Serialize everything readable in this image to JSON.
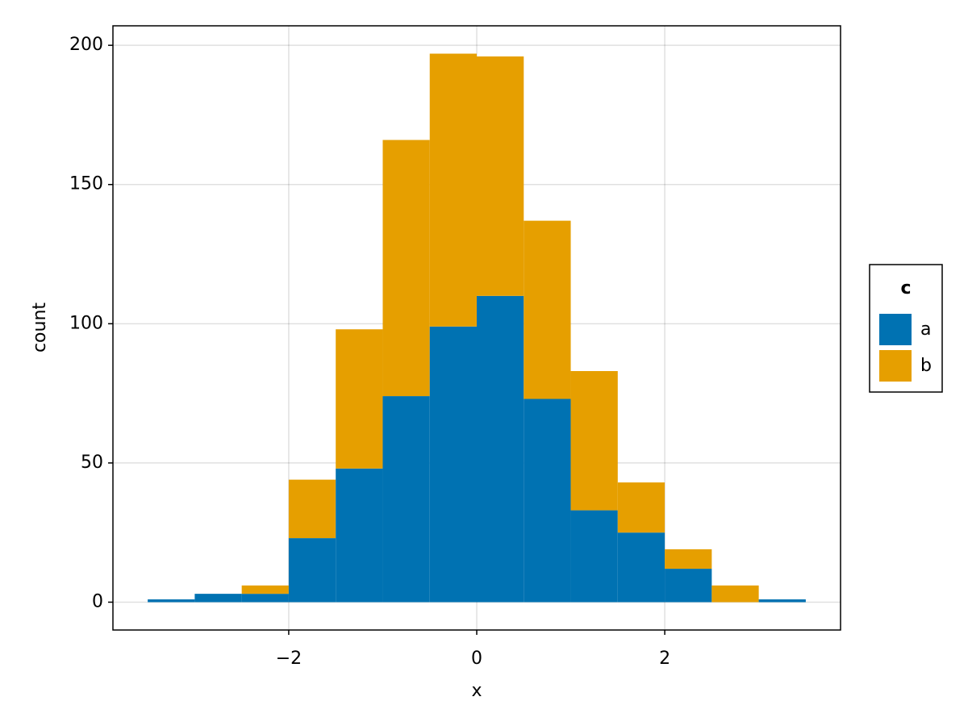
{
  "chart_data": {
    "type": "histogram",
    "stacked": true,
    "bins": [
      -3.5,
      -3,
      -2.5,
      -2,
      -1.5,
      -1,
      -0.5,
      0,
      0.5,
      1,
      1.5,
      2,
      2.5,
      3,
      3.5
    ],
    "series": [
      {
        "name": "a",
        "color": "#0072b2",
        "values": [
          1,
          3,
          3,
          23,
          48,
          74,
          99,
          110,
          73,
          33,
          25,
          12,
          0,
          1
        ]
      },
      {
        "name": "b",
        "color": "#e69f00",
        "values": [
          0,
          0,
          3,
          21,
          50,
          92,
          98,
          86,
          64,
          50,
          18,
          7,
          6,
          0
        ]
      }
    ],
    "x_label": "x",
    "y_label": "count",
    "legend_title": "c",
    "legend": "right",
    "xlim": [
      -3.87,
      3.87
    ],
    "ylim": [
      -10,
      207
    ],
    "xticks": [
      {
        "value": -2,
        "label": "−2"
      },
      0,
      2
    ],
    "yticks": [
      0,
      50,
      100,
      150,
      200
    ],
    "grid": true
  }
}
